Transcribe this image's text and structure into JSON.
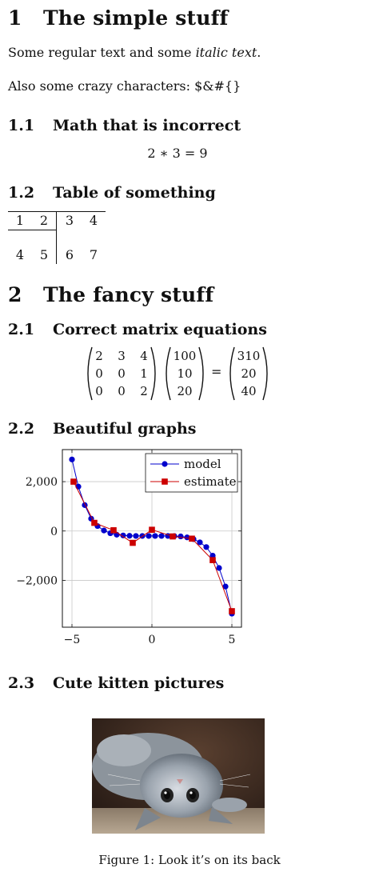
{
  "sections": [
    {
      "num": "1",
      "title": "The simple stuff"
    },
    {
      "num": "2",
      "title": "The fancy stuff"
    }
  ],
  "subsections": [
    {
      "num": "1.1",
      "title": "Math that is incorrect"
    },
    {
      "num": "1.2",
      "title": "Table of something"
    },
    {
      "num": "2.1",
      "title": "Correct matrix equations"
    },
    {
      "num": "2.2",
      "title": "Beautiful graphs"
    },
    {
      "num": "2.3",
      "title": "Cute kitten pictures"
    }
  ],
  "paragraphs": {
    "p1_plain": "Some regular text and some ",
    "p1_italic": "italic text",
    "p1_end": ".",
    "p2": "Also some crazy characters: $&#{}"
  },
  "equation": "2 ∗ 3 = 9",
  "table": {
    "header": [
      "1",
      "2",
      "3",
      "4"
    ],
    "row": [
      "4",
      "5",
      "6",
      "7"
    ]
  },
  "matrix_equation": {
    "A": [
      [
        "2",
        "3",
        "4"
      ],
      [
        "0",
        "0",
        "1"
      ],
      [
        "0",
        "0",
        "2"
      ]
    ],
    "x": [
      "100",
      "10",
      "20"
    ],
    "equals": "=",
    "b": [
      "310",
      "20",
      "40"
    ]
  },
  "chart_data": {
    "type": "line",
    "xlim": [
      -5.6,
      5.6
    ],
    "ylim": [
      -3900,
      3300
    ],
    "xticks": [
      -5,
      0,
      5
    ],
    "xtick_labels": [
      "−5",
      "0",
      "5"
    ],
    "yticks": [
      -2000,
      0,
      2000
    ],
    "ytick_labels": [
      "−2,000",
      "0",
      "2,000"
    ],
    "grid": true,
    "legend_position": "top-right",
    "series": [
      {
        "name": "model",
        "color": "#0000cc",
        "marker": "circle",
        "x": [
          -5,
          -4.6,
          -4.2,
          -3.8,
          -3.4,
          -3,
          -2.6,
          -2.2,
          -1.8,
          -1.4,
          -1,
          -0.6,
          -0.2,
          0.2,
          0.6,
          1,
          1.4,
          1.8,
          2.2,
          2.6,
          3,
          3.4,
          3.8,
          4.2,
          4.6,
          5
        ],
        "y": [
          2900,
          1800,
          1050,
          500,
          200,
          20,
          -90,
          -150,
          -180,
          -195,
          -200,
          -200,
          -200,
          -200,
          -200,
          -200,
          -205,
          -220,
          -260,
          -330,
          -460,
          -650,
          -1000,
          -1500,
          -2250,
          -3350
        ]
      },
      {
        "name": "estimate",
        "color": "#cc0000",
        "marker": "square",
        "x": [
          -4.9,
          -3.6,
          -2.4,
          -1.2,
          0,
          1.3,
          2.5,
          3.8,
          5
        ],
        "y": [
          2000,
          330,
          30,
          -480,
          50,
          -220,
          -310,
          -1180,
          -3250
        ]
      }
    ]
  },
  "figure_caption": "Figure 1: Look it’s on its back"
}
